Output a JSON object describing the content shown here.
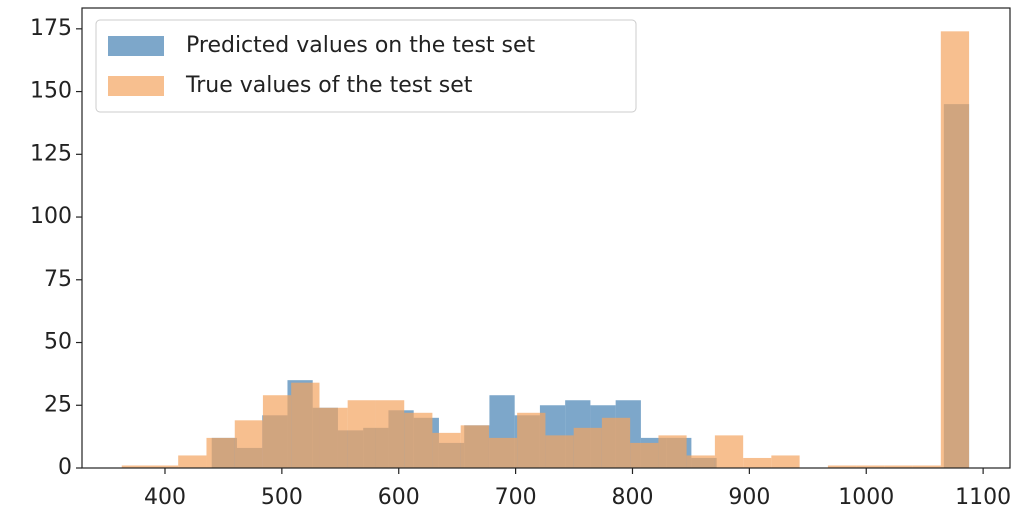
{
  "chart_data": {
    "type": "histogram",
    "series": [
      {
        "name": "Predicted values on the test set",
        "color": "steelblue",
        "bins": [
          440,
          461.6,
          483.2,
          504.8,
          526.4,
          548,
          569.6,
          591.2,
          612.8,
          634.4,
          656,
          677.6,
          699.2,
          720.8,
          742.4,
          764,
          785.6,
          807.2,
          828.8,
          850.4,
          872,
          893.6,
          915.2,
          936.8,
          958.4,
          980,
          1001.6,
          1023.2,
          1044.8,
          1066.4,
          1088
        ],
        "values": [
          12,
          8,
          21,
          35,
          24,
          15,
          16,
          23,
          20,
          10,
          17,
          29,
          21,
          25,
          27,
          25,
          27,
          12,
          12,
          4,
          0,
          0,
          0,
          0,
          0,
          0,
          0,
          0,
          0,
          145
        ]
      },
      {
        "name": "True values of the test set",
        "color": "sandybrown",
        "bins": [
          363,
          387.2,
          411.3,
          435.5,
          459.7,
          483.8,
          508,
          532.2,
          556.3,
          580.5,
          604.7,
          628.8,
          653,
          677.2,
          701.3,
          725.5,
          749.7,
          773.8,
          798,
          822.2,
          846.3,
          870.5,
          894.7,
          918.8,
          943,
          967.2,
          991.3,
          1015.5,
          1039.7,
          1063.8,
          1088
        ],
        "values": [
          1,
          1,
          5,
          12,
          19,
          29,
          34,
          24,
          27,
          27,
          22,
          14,
          17,
          12,
          22,
          13,
          16,
          20,
          10,
          13,
          5,
          13,
          4,
          5,
          0,
          1,
          1,
          1,
          1,
          174
        ]
      }
    ],
    "xlim": [
      329,
      1123
    ],
    "ylim": [
      0,
      183.3
    ],
    "xticks": [
      400,
      500,
      600,
      700,
      800,
      900,
      1000,
      1100
    ],
    "yticks": [
      0,
      25,
      50,
      75,
      100,
      125,
      150,
      175
    ],
    "legend": "upper left"
  }
}
